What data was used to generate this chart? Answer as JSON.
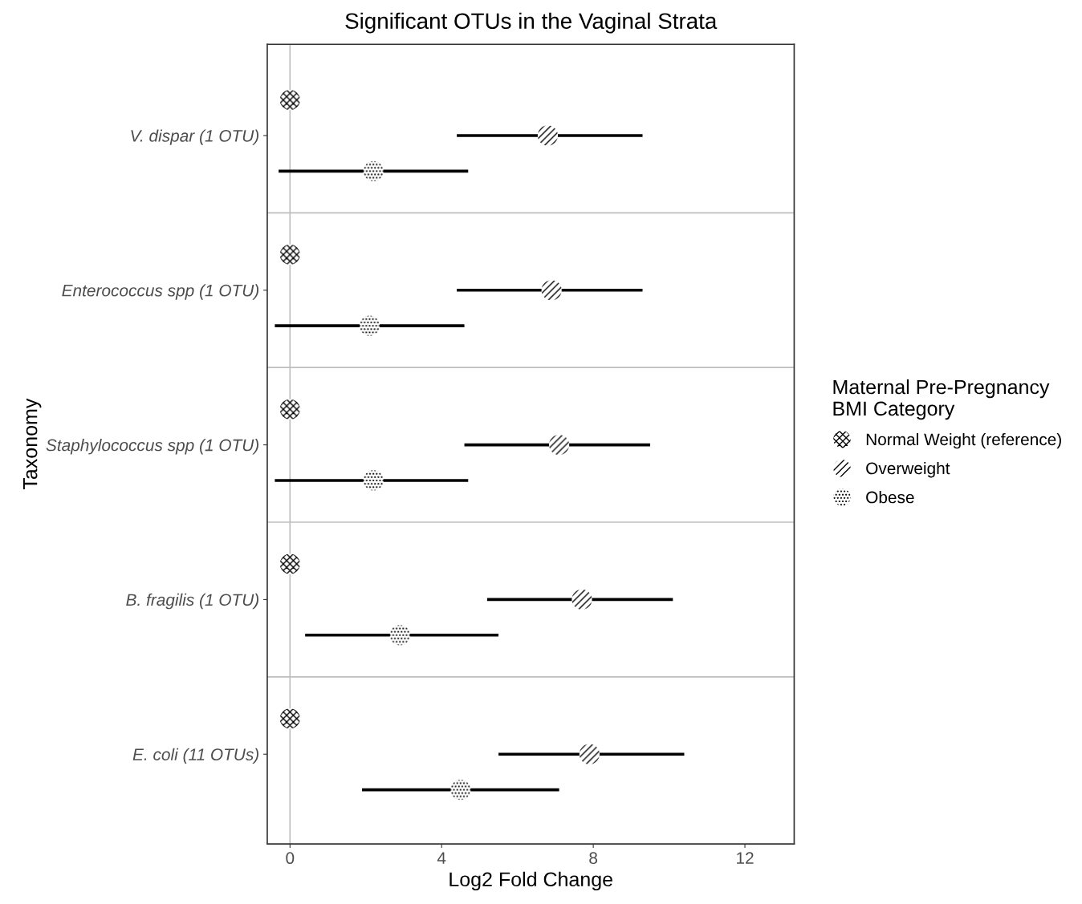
{
  "chart_data": {
    "type": "scatter",
    "orientation": "horizontal",
    "title": "Significant OTUs in the Vaginal Strata",
    "xlabel": "Log2 Fold Change",
    "ylabel": "Taxonomy",
    "legend_title": "Maternal Pre-Pregnancy\nBMI Category",
    "legend": "right",
    "marker": "circle",
    "grid": false,
    "categories": [
      "V. dispar (1 OTU)",
      "Enterococcus spp (1 OTU)",
      "Staphylococcus spp (1 OTU)",
      "B. fragilis (1 OTU)",
      "E. coli (11 OTUs)"
    ],
    "xlim": [
      -0.6,
      13.3
    ],
    "xticks": [
      0,
      4,
      8,
      12
    ],
    "ref_lines": [
      {
        "axis": "x",
        "value": 0,
        "color": "#bebebe"
      }
    ],
    "series": [
      {
        "name": "Normal Weight (reference)",
        "color": "#000000",
        "values": [
          0,
          0,
          0,
          0,
          0
        ]
      },
      {
        "name": "Overweight",
        "color": "#000000",
        "values": [
          6.8,
          6.9,
          7.1,
          7.7,
          7.9
        ],
        "errors": [
          [
            4.4,
            9.3
          ],
          [
            4.4,
            9.3
          ],
          [
            4.6,
            9.5
          ],
          [
            5.2,
            10.1
          ],
          [
            5.5,
            10.4
          ]
        ]
      },
      {
        "name": "Obese",
        "color": "#000000",
        "values": [
          2.2,
          2.1,
          2.2,
          2.9,
          4.5
        ],
        "errors": [
          [
            -0.3,
            4.7
          ],
          [
            -0.4,
            4.6
          ],
          [
            -0.4,
            4.7
          ],
          [
            0.4,
            5.5
          ],
          [
            1.9,
            7.1
          ]
        ]
      }
    ]
  }
}
